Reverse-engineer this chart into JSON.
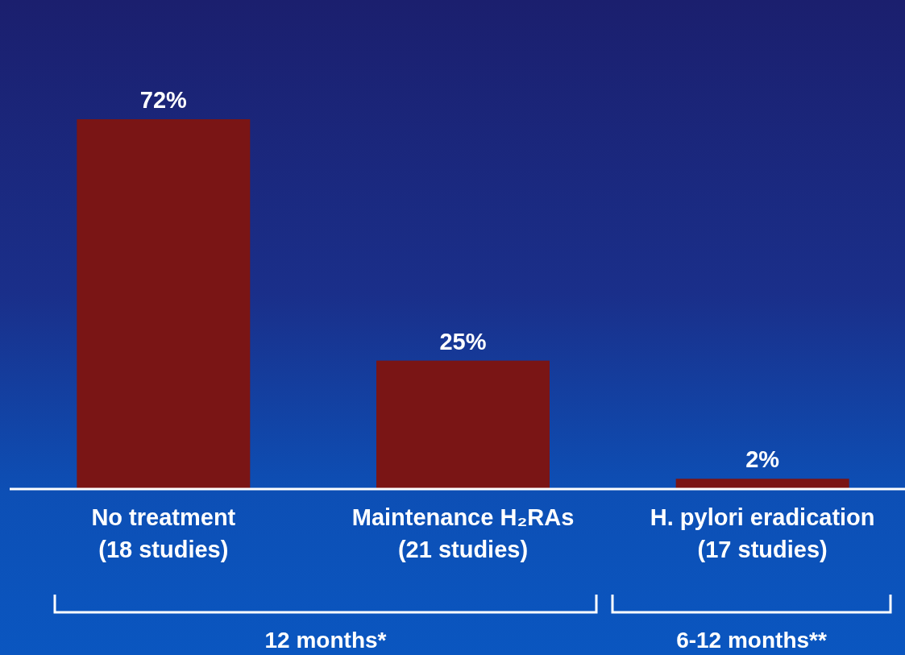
{
  "chart_data": {
    "type": "bar",
    "categories": [
      "No treatment\n(18 studies)",
      "Maintenance H₂RAs\n(21 studies)",
      "H. pylori eradication\n(17 studies)"
    ],
    "values": [
      72,
      25,
      2
    ],
    "color": "#7a1515",
    "value_labels": [
      "72%",
      "25%",
      "2%"
    ],
    "annotations": [
      "12 months*",
      "6-12 months**"
    ]
  }
}
